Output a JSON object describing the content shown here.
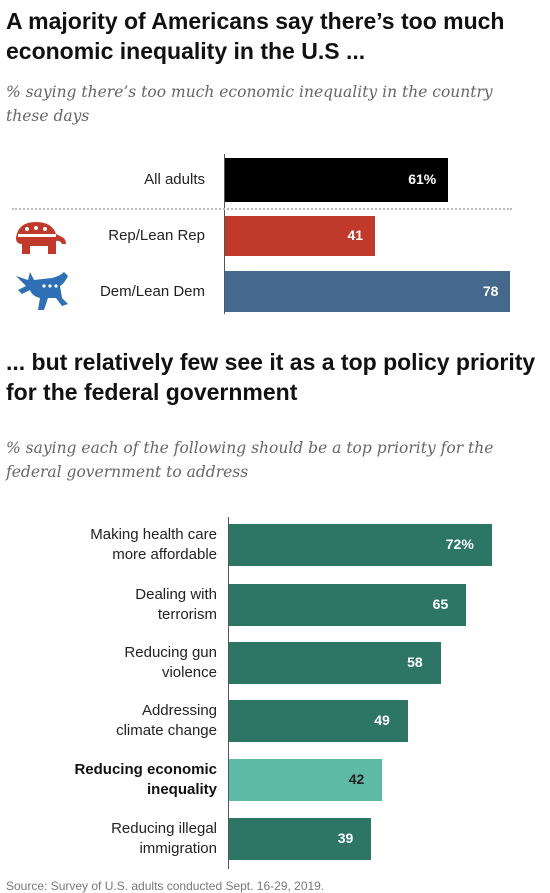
{
  "chart1": {
    "title": "A majority of Americans say there’s too much economic inequality in the U.S ...",
    "subtitle": "% saying there’s too much economic inequality in the country these days"
  },
  "chart2": {
    "title": "... but relatively few see it as a top policy priority for the federal government",
    "subtitle": "% saying each of the following should be a top priority for the federal government to address"
  },
  "source": "Source: Survey of U.S. adults conducted Sept. 16-29, 2019.",
  "colors": {
    "all_adults": "#000000",
    "rep": "#c0392b",
    "dem": "#44698c",
    "priority": "#2d7565",
    "highlight": "#5dbaa6"
  },
  "icons": [
    "republican-elephant-icon",
    "democratic-donkey-icon"
  ],
  "chart_data": [
    {
      "type": "bar",
      "orientation": "horizontal",
      "categories": [
        "All adults",
        "Rep/Lean Rep",
        "Dem/Lean Dem"
      ],
      "values": [
        61,
        41,
        78
      ],
      "value_labels": [
        "61%",
        "41",
        "78"
      ],
      "xlim": [
        0,
        100
      ]
    },
    {
      "type": "bar",
      "orientation": "horizontal",
      "categories": [
        [
          "Making health care",
          "more affordable"
        ],
        [
          "Dealing with",
          "terrorism"
        ],
        [
          "Reducing gun",
          "violence"
        ],
        [
          "Addressing",
          "climate change"
        ],
        [
          "Reducing economic",
          "inequality"
        ],
        [
          "Reducing illegal",
          "immigration"
        ]
      ],
      "values": [
        72,
        65,
        58,
        49,
        42,
        39
      ],
      "value_labels": [
        "72%",
        "65",
        "58",
        "49",
        "42",
        "39"
      ],
      "highlighted_category_index": 4,
      "xlim": [
        0,
        100
      ]
    }
  ]
}
